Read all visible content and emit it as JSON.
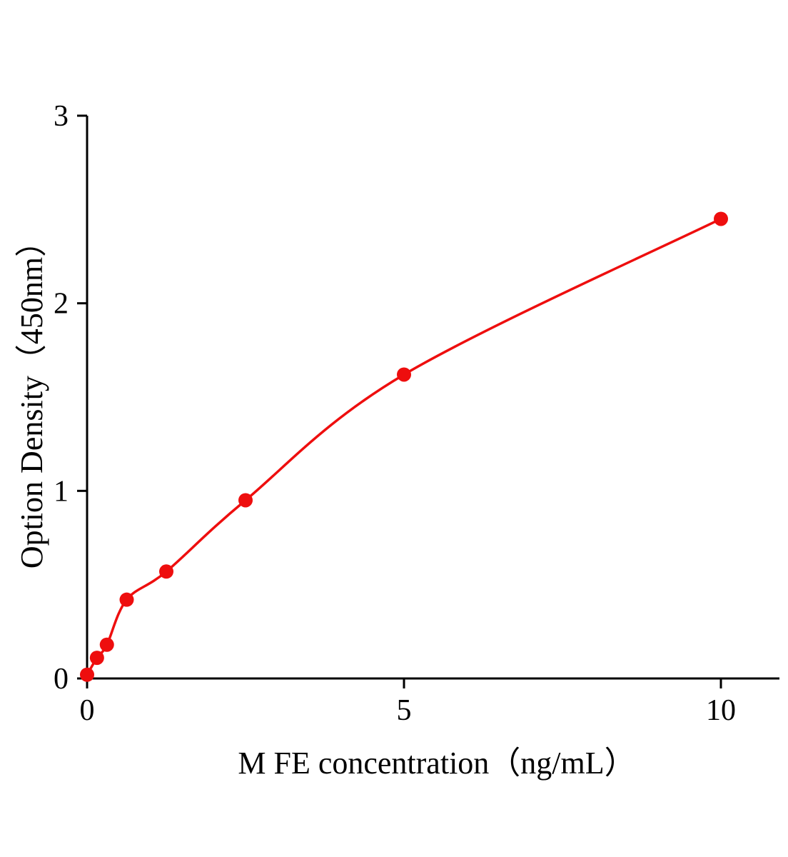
{
  "chart_data": {
    "type": "scatter",
    "title": "",
    "xlabel": "M FE concentration（ng/mL）",
    "ylabel": "Option Density（450nm）",
    "x": [
      0,
      0.156,
      0.3125,
      0.625,
      1.25,
      2.5,
      5,
      10
    ],
    "y": [
      0.02,
      0.11,
      0.18,
      0.42,
      0.57,
      0.95,
      1.62,
      2.45
    ],
    "x_ticks": [
      0,
      5,
      10
    ],
    "y_ticks": [
      0,
      1,
      2,
      3
    ],
    "xlim": [
      0,
      10.9
    ],
    "ylim": [
      0,
      3
    ],
    "grid": false,
    "legend": "none",
    "marker": "filled-circle",
    "curve": "smooth-fit-line",
    "series_color": "#ee0e0e",
    "axis_color": "#000000"
  }
}
